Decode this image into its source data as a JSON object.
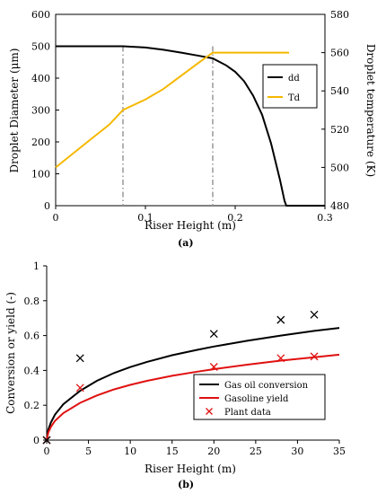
{
  "chart_data": [
    {
      "panel": "(a)",
      "type": "line",
      "xlabel": "Riser Height (m)",
      "ylabel": "Droplet Diameter (μm)",
      "y2label": "Droplet temperature (K)",
      "xlim": [
        0,
        0.3
      ],
      "ylim": [
        0,
        600
      ],
      "y2lim": [
        480,
        580
      ],
      "x_ticks": [
        "0",
        "0.1",
        "0.2",
        "0.3"
      ],
      "y_ticks": [
        "0",
        "100",
        "200",
        "300",
        "400",
        "500",
        "600"
      ],
      "y2_ticks": [
        "480",
        "500",
        "520",
        "540",
        "560",
        "580"
      ],
      "grid": false,
      "legend_position": "right",
      "series": [
        {
          "name": "dd",
          "axis": "left",
          "color": "#000000",
          "x": [
            0,
            0.075,
            0.1,
            0.12,
            0.14,
            0.16,
            0.175,
            0.19,
            0.2,
            0.21,
            0.22,
            0.23,
            0.24,
            0.25,
            0.255,
            0.257,
            0.3
          ],
          "y": [
            500,
            500,
            496,
            489,
            480,
            470,
            462,
            440,
            420,
            390,
            345,
            285,
            195,
            80,
            15,
            0,
            0
          ]
        },
        {
          "name": "Td",
          "axis": "right",
          "color": "#f5b800",
          "x": [
            0,
            0.02,
            0.04,
            0.06,
            0.075,
            0.1,
            0.12,
            0.14,
            0.16,
            0.175,
            0.26
          ],
          "y": [
            500,
            507.5,
            515,
            522.5,
            530,
            535.5,
            541,
            548,
            555,
            560,
            560
          ]
        }
      ],
      "dashed_markers_x": [
        0.075,
        0.175
      ]
    },
    {
      "panel": "(b)",
      "type": "line",
      "xlabel": "Riser Height (m)",
      "ylabel": "Conversion or yield (-)",
      "xlim": [
        0,
        35
      ],
      "ylim": [
        0,
        1
      ],
      "x_ticks": [
        "0",
        "5",
        "10",
        "15",
        "20",
        "25",
        "30",
        "35"
      ],
      "y_ticks": [
        "0",
        "0.2",
        "0.4",
        "0.6",
        "0.8",
        "1"
      ],
      "grid": false,
      "legend_position": "bottom-right",
      "series": [
        {
          "name": "Gas oil conversion",
          "style": "line",
          "color": "#000000",
          "x": [
            0,
            0.2,
            0.5,
            1,
            2,
            4,
            6,
            8,
            10,
            12,
            15,
            18,
            20,
            24,
            28,
            32,
            35
          ],
          "y": [
            0,
            0.062,
            0.101,
            0.147,
            0.206,
            0.283,
            0.34,
            0.384,
            0.419,
            0.449,
            0.487,
            0.518,
            0.537,
            0.57,
            0.6,
            0.627,
            0.644
          ]
        },
        {
          "name": "Gasoline yield",
          "style": "line",
          "color": "#e01010",
          "x": [
            0,
            0.2,
            0.5,
            1,
            2,
            4,
            6,
            8,
            10,
            12,
            15,
            18,
            20,
            24,
            28,
            32,
            35
          ],
          "y": [
            0,
            0.045,
            0.076,
            0.111,
            0.155,
            0.214,
            0.256,
            0.29,
            0.317,
            0.34,
            0.369,
            0.393,
            0.407,
            0.433,
            0.456,
            0.476,
            0.49
          ]
        },
        {
          "name": "Plant data",
          "style": "marker",
          "color": "#e01010",
          "points": [
            [
              0,
              0
            ],
            [
              4,
              0.3
            ],
            [
              20,
              0.42
            ],
            [
              28,
              0.47
            ],
            [
              32,
              0.48
            ]
          ]
        },
        {
          "style": "marker",
          "color": "#000000",
          "points": [
            [
              0,
              0
            ],
            [
              4,
              0.47
            ],
            [
              20,
              0.61
            ],
            [
              28,
              0.69
            ],
            [
              32,
              0.72
            ]
          ]
        }
      ]
    }
  ],
  "captions": {
    "a": "(a)",
    "b": "(b)"
  }
}
